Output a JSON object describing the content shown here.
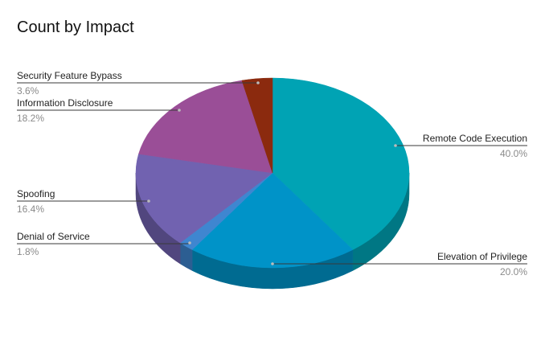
{
  "chart_data": {
    "type": "pie",
    "title": "Count by Impact",
    "style": "3d",
    "slices": [
      {
        "label": "Remote Code Execution",
        "percent_label": "40.0%",
        "value": 40.0,
        "color": "#00A3B4",
        "side_color": "#007784"
      },
      {
        "label": "Elevation of Privilege",
        "percent_label": "20.0%",
        "value": 20.0,
        "color": "#0093C8",
        "side_color": "#006B91"
      },
      {
        "label": "Denial of Service",
        "percent_label": "1.8%",
        "value": 1.8,
        "color": "#3F86D0",
        "side_color": "#2C5E92"
      },
      {
        "label": "Spoofing",
        "percent_label": "16.4%",
        "value": 16.4,
        "color": "#7162B0",
        "side_color": "#51467E"
      },
      {
        "label": "Information Disclosure",
        "percent_label": "18.2%",
        "value": 18.2,
        "color": "#9A4E97",
        "side_color": "#6E376C"
      },
      {
        "label": "Security Feature Bypass",
        "percent_label": "3.6%",
        "value": 3.6,
        "color": "#8B2A0E",
        "side_color": "#611D0A"
      }
    ]
  }
}
